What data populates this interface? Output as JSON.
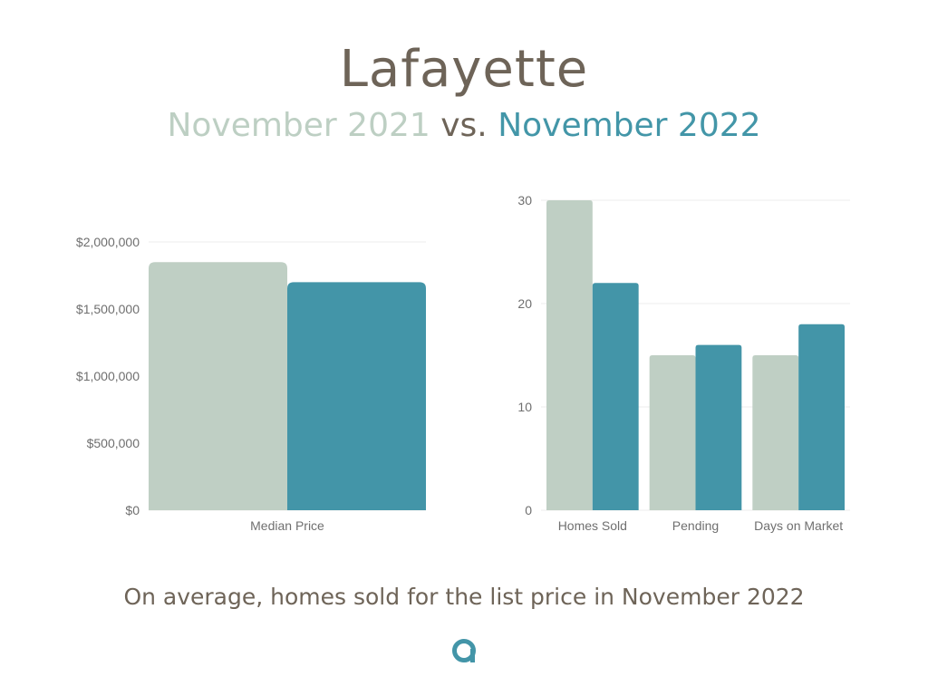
{
  "header": {
    "title": "Lafayette",
    "period_prev": "November 2021",
    "vs": "vs.",
    "period_curr": "November 2022"
  },
  "colors": {
    "prev": "#bfcfc4",
    "curr": "#4395a8",
    "text": "#6e6458"
  },
  "chart_data": [
    {
      "type": "bar",
      "categories": [
        "Median Price"
      ],
      "series": [
        {
          "values": [
            1850000
          ]
        },
        {
          "values": [
            1700000
          ]
        }
      ],
      "yticks": [
        0,
        500000,
        1000000,
        1500000,
        2000000
      ],
      "ytick_labels": [
        "$0",
        "$500,000",
        "$1,000,000",
        "$1,500,000",
        "$2,000,000"
      ],
      "ylim": [
        0,
        2000000
      ],
      "grid": true
    },
    {
      "type": "bar",
      "categories": [
        "Homes Sold",
        "Pending",
        "Days on Market"
      ],
      "series": [
        {
          "values": [
            30,
            15,
            15
          ]
        },
        {
          "values": [
            22,
            16,
            18
          ]
        }
      ],
      "yticks": [
        0,
        10,
        20,
        30
      ],
      "ytick_labels": [
        "0",
        "10",
        "20",
        "30"
      ],
      "ylim": [
        0,
        30
      ],
      "grid": true
    }
  ],
  "footnote": "On average, homes sold for the list price in November 2022",
  "logo": {
    "icon": "brand-a-icon"
  }
}
